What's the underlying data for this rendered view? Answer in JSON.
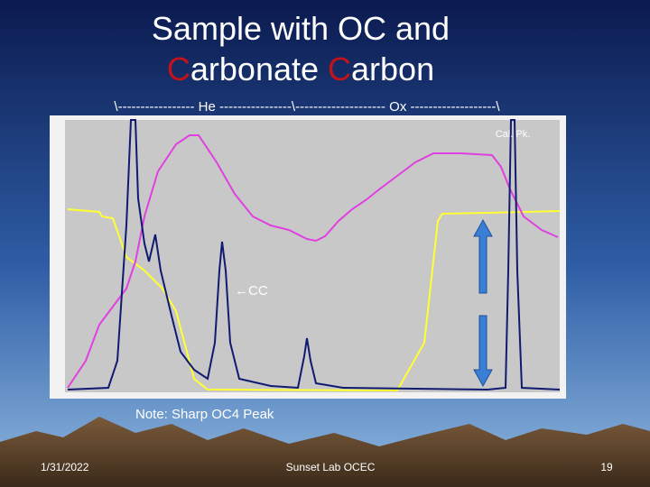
{
  "slide": {
    "title": {
      "line1": "Sample with OC and",
      "line2": [
        "C",
        "arbonate ",
        "C",
        "arbon"
      ]
    },
    "header": "\\----------------- He ----------------\\-------------------- Ox -------------------\\",
    "cal_label": "Cal. Pk.",
    "cc_label": "←CC",
    "note": "Note: Sharp OC4 Peak",
    "footer": {
      "date": "1/31/2022",
      "center": "Sunset Lab OCEC",
      "page": "19"
    }
  }
}
